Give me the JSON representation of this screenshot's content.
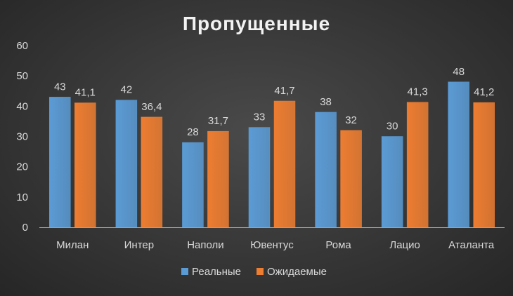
{
  "chart_data": {
    "type": "bar",
    "title": "Пропущенные",
    "categories": [
      "Милан",
      "Интер",
      "Наполи",
      "Ювентус",
      "Рома",
      "Лацио",
      "Аталанта"
    ],
    "series": [
      {
        "name": "Реальные",
        "values": [
          43,
          42,
          28,
          33,
          38,
          30,
          48
        ],
        "labels": [
          "43",
          "42",
          "28",
          "33",
          "38",
          "30",
          "48"
        ],
        "color": "#5b9bd5"
      },
      {
        "name": "Ожидаемые",
        "values": [
          41.1,
          36.4,
          31.7,
          41.7,
          32,
          41.3,
          41.2
        ],
        "labels": [
          "41,1",
          "36,4",
          "31,7",
          "41,7",
          "32",
          "41,3",
          "41,2"
        ],
        "color": "#ed7d31"
      }
    ],
    "yticks": [
      "0",
      "10",
      "20",
      "30",
      "40",
      "50",
      "60"
    ],
    "ylim": [
      0,
      60
    ],
    "grid": false,
    "legend_position": "bottom"
  }
}
